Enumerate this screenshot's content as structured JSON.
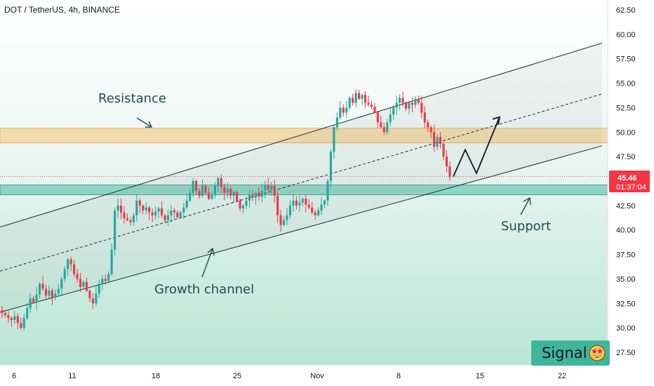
{
  "header": {
    "symbol_line": "DOT / TetherUS, 4h, BINANCE"
  },
  "price_tag": {
    "price": "45.46",
    "countdown": "01:37:04",
    "color": "#f23645"
  },
  "signal_badge": {
    "text": "Signal",
    "color": "#3fb59c",
    "icon": "star-struck-emoji-icon"
  },
  "annotations": {
    "resistance": "Resistance",
    "support": "Support",
    "growth_channel": "Growth channel"
  },
  "colors": {
    "up_candle": "#26a69a",
    "down_candle": "#f23645",
    "resistance_zone": "#f3d39a",
    "support_zone": "#5ec4b2",
    "channel_line": "#1a2e2e",
    "background_gradient_bottom": "#b8e6d6"
  },
  "chart_data": {
    "type": "candlestick",
    "title": "DOT / TetherUS, 4h, BINANCE",
    "y_axis": {
      "ticks": [
        "62.50",
        "60.00",
        "57.50",
        "55.00",
        "52.50",
        "50.00",
        "47.50",
        "45.00",
        "42.50",
        "40.00",
        "37.50",
        "35.00",
        "32.50",
        "30.00",
        "27.50"
      ],
      "range": [
        26.0,
        63.5
      ],
      "side": "right"
    },
    "x_axis": {
      "ticks": [
        "6",
        "11",
        "18",
        "25",
        "Nov",
        "8",
        "15",
        "22"
      ]
    },
    "last_price": 45.46,
    "path_closes": [
      31.5,
      31.3,
      31.0,
      30.8,
      31.2,
      30.5,
      30.0,
      31.0,
      32.0,
      33.0,
      32.6,
      33.4,
      34.5,
      34.0,
      33.3,
      33.8,
      33.1,
      33.5,
      34.0,
      35.0,
      36.0,
      37.0,
      36.5,
      35.5,
      35.0,
      34.2,
      34.7,
      33.8,
      33.0,
      32.5,
      33.5,
      34.5,
      35.0,
      34.8,
      35.5,
      38.0,
      42.0,
      42.5,
      41.8,
      41.2,
      41.0,
      40.8,
      41.5,
      43.0,
      42.5,
      42.0,
      42.3,
      41.8,
      41.5,
      41.9,
      42.2,
      41.5,
      41.0,
      41.5,
      42.0,
      41.8,
      41.3,
      41.8,
      42.3,
      43.0,
      43.8,
      45.0,
      44.0,
      43.5,
      44.5,
      43.8,
      43.2,
      43.6,
      44.5,
      45.3,
      44.4,
      43.8,
      44.2,
      43.5,
      43.9,
      43.0,
      42.2,
      42.5,
      43.0,
      43.6,
      43.3,
      43.8,
      43.4,
      44.0,
      44.6,
      44.1,
      44.5,
      43.5,
      41.5,
      40.5,
      41.0,
      41.5,
      42.5,
      43.0,
      42.5,
      42.8,
      43.2,
      42.6,
      42.3,
      41.8,
      41.5,
      42.0,
      42.6,
      43.0,
      45.0,
      48.0,
      50.5,
      51.5,
      52.5,
      52.0,
      52.5,
      53.5,
      53.0,
      54.0,
      53.4,
      53.8,
      53.0,
      52.8,
      52.6,
      52.0,
      51.0,
      50.5,
      50.0,
      51.0,
      51.8,
      52.5,
      53.0,
      53.5,
      53.0,
      52.4,
      53.0,
      52.8,
      53.4,
      53.0,
      52.0,
      51.0,
      50.5,
      50.0,
      48.5,
      49.5,
      48.8,
      47.5,
      46.5,
      45.46
    ],
    "projection_path": [
      45.46,
      48.2,
      45.8,
      51.4
    ],
    "channel": {
      "upper_line": [
        [
          0,
          40.3
        ],
        [
          858,
          59.1
        ]
      ],
      "middle_line_dashed": [
        [
          0,
          35.8
        ],
        [
          858,
          53.9
        ]
      ],
      "lower_line": [
        [
          0,
          31.6
        ],
        [
          858,
          48.6
        ]
      ]
    },
    "resistance_zone": [
      48.9,
      50.4
    ],
    "support_zone": [
      43.6,
      44.6
    ]
  }
}
